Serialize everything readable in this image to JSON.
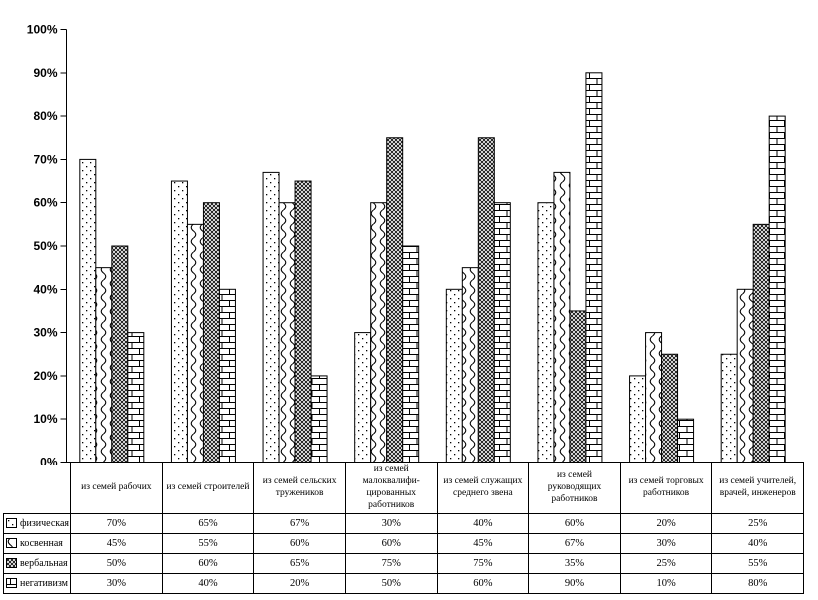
{
  "chart_data": {
    "type": "bar",
    "title": "",
    "categories": [
      "из семей рабочих",
      "из семей строителей",
      "из семей сельских тружеников",
      "из семей малоквалифи-цированных работников",
      "из семей служащих среднего звена",
      "из семей руководящих работников",
      "из семей торговых работников",
      "из семей учителей, врачей, инженеров"
    ],
    "series": [
      {
        "name": "физическая",
        "pattern": "dots",
        "values": [
          70,
          65,
          67,
          30,
          40,
          60,
          20,
          25
        ]
      },
      {
        "name": "косвенная",
        "pattern": "waves",
        "values": [
          45,
          55,
          60,
          60,
          45,
          67,
          30,
          40
        ]
      },
      {
        "name": "вербальная",
        "pattern": "crosshatch",
        "values": [
          50,
          60,
          65,
          75,
          75,
          35,
          25,
          55
        ]
      },
      {
        "name": "негативизм",
        "pattern": "bricks",
        "values": [
          30,
          40,
          20,
          50,
          60,
          90,
          10,
          80
        ]
      }
    ],
    "y_axis": {
      "min": 0,
      "max": 100,
      "step": 10,
      "tick_labels": [
        "0%",
        "10%",
        "20%",
        "30%",
        "40%",
        "50%",
        "60%",
        "70%",
        "80%",
        "90%",
        "100%"
      ]
    },
    "value_suffix": "%",
    "grid": false,
    "legend_position": "table-left",
    "colors": {
      "foreground": "#000000",
      "background": "#ffffff"
    }
  }
}
